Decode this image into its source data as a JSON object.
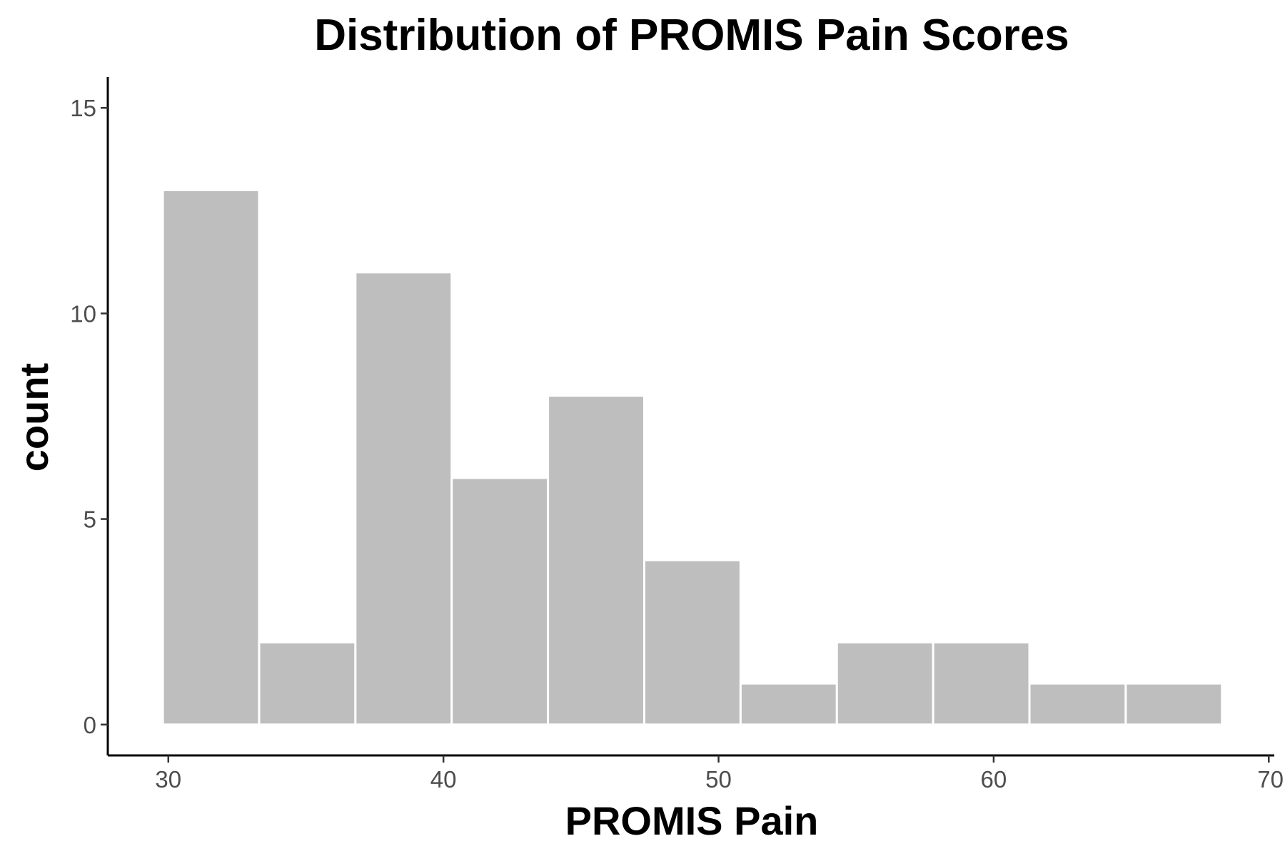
{
  "chart_data": {
    "type": "bar",
    "title": "Distribution of PROMIS Pain Scores",
    "xlabel": "PROMIS Pain",
    "ylabel": "count",
    "bins": [
      {
        "start": 29.8,
        "end": 33.3,
        "count": 13
      },
      {
        "start": 33.3,
        "end": 36.8,
        "count": 2
      },
      {
        "start": 36.8,
        "end": 40.3,
        "count": 11
      },
      {
        "start": 40.3,
        "end": 43.8,
        "count": 6
      },
      {
        "start": 43.8,
        "end": 47.3,
        "count": 8
      },
      {
        "start": 47.3,
        "end": 50.8,
        "count": 4
      },
      {
        "start": 50.8,
        "end": 54.3,
        "count": 1
      },
      {
        "start": 54.3,
        "end": 57.8,
        "count": 2
      },
      {
        "start": 57.8,
        "end": 61.3,
        "count": 2
      },
      {
        "start": 61.3,
        "end": 64.8,
        "count": 1
      },
      {
        "start": 64.8,
        "end": 68.3,
        "count": 1
      }
    ],
    "xlim": [
      27.8,
      70.2
    ],
    "ylim": [
      -0.75,
      15.75
    ],
    "xticks": [
      30,
      40,
      50,
      60,
      70
    ],
    "yticks": [
      0,
      5,
      10,
      15
    ],
    "xtick_labels": [
      "30",
      "40",
      "50",
      "60",
      "70"
    ],
    "ytick_labels": [
      "0",
      "5",
      "10",
      "15"
    ],
    "grid": false,
    "legend": "none",
    "colors": {
      "bar_fill": "#bebebe",
      "bar_border": "#ffffff",
      "axis": "#000000",
      "tick_text": "#4d4d4d"
    }
  }
}
